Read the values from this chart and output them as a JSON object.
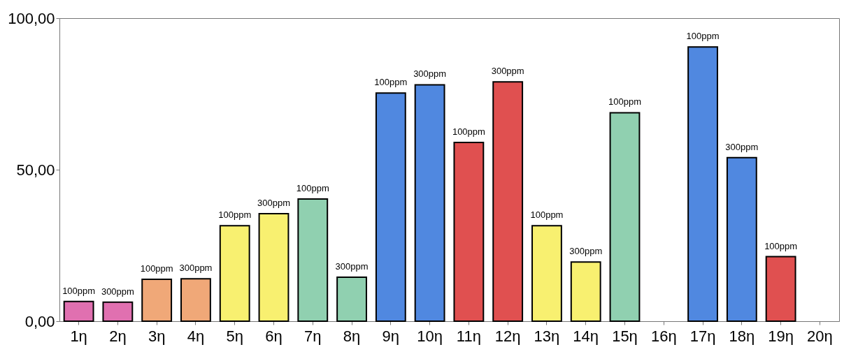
{
  "chart_data": {
    "type": "bar",
    "categories": [
      "1η",
      "2η",
      "3η",
      "4η",
      "5η",
      "6η",
      "7η",
      "8η",
      "9η",
      "10η",
      "11η",
      "12η",
      "13η",
      "14η",
      "15η",
      "16η",
      "17η",
      "18η",
      "19η",
      "20η"
    ],
    "values": [
      6.5,
      6.3,
      13.8,
      14.0,
      31.5,
      35.5,
      40.3,
      14.5,
      75.3,
      78.0,
      59.0,
      79.0,
      31.5,
      19.5,
      68.8,
      null,
      90.5,
      54.0,
      21.3,
      null
    ],
    "colors": [
      "#e070b0",
      "#e070b0",
      "#f0a878",
      "#f0a878",
      "#f8f070",
      "#f8f070",
      "#90d0b0",
      "#90d0b0",
      "#5088e0",
      "#5088e0",
      "#e05050",
      "#e05050",
      "#f8f070",
      "#f8f070",
      "#90d0b0",
      "#90d0b0",
      "#5088e0",
      "#5088e0",
      "#e05050",
      "#e05050"
    ],
    "annotations": [
      {
        "text": "100ppm",
        "x": "1η",
        "y": 6.5
      },
      {
        "text": "300ppm",
        "x": "2η",
        "y": 6.3
      },
      {
        "text": "100ppm",
        "x": "3η",
        "y": 13.8
      },
      {
        "text": "300ppm",
        "x": "4η",
        "y": 14.0
      },
      {
        "text": "100ppm",
        "x": "5η",
        "y": 31.5
      },
      {
        "text": "300ppm",
        "x": "6η",
        "y": 35.5
      },
      {
        "text": "100ppm",
        "x": "7η",
        "y": 40.3
      },
      {
        "text": "300ppm",
        "x": "8η",
        "y": 14.5
      },
      {
        "text": "100ppm",
        "x": "9η",
        "y": 75.3
      },
      {
        "text": "300ppm",
        "x": "10η",
        "y": 78.0
      },
      {
        "text": "100ppm",
        "x": "11η",
        "y": 59.0
      },
      {
        "text": "300ppm",
        "x": "12η",
        "y": 79.0
      },
      {
        "text": "100ppm",
        "x": "13η",
        "y": 31.5
      },
      {
        "text": "300ppm",
        "x": "14η",
        "y": 19.5
      },
      {
        "text": "100ppm",
        "x": "15η",
        "y": 68.8
      },
      {
        "text": "100ppm",
        "x": "17η",
        "y": 90.5
      },
      {
        "text": "300ppm",
        "x": "18η",
        "y": 54.0
      },
      {
        "text": "100ppm",
        "x": "19η",
        "y": 21.3
      }
    ],
    "ylim": [
      0,
      100
    ],
    "yticks": [
      {
        "value": 0,
        "label": "0,00"
      },
      {
        "value": 50,
        "label": "50,00"
      },
      {
        "value": 100,
        "label": "100,00"
      }
    ],
    "grid": false
  }
}
